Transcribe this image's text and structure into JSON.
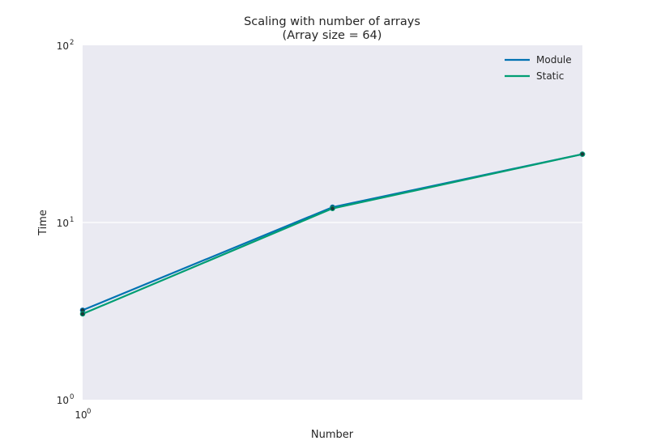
{
  "chart_data": {
    "type": "line",
    "title": "Scaling with number of arrays",
    "subtitle": "(Array size = 64)",
    "xlabel": "Number",
    "ylabel": "Time",
    "xscale": "log",
    "yscale": "log",
    "xlim": [
      1,
      4
    ],
    "ylim": [
      1,
      100
    ],
    "x_ticks": [
      {
        "base": "10",
        "exp": "0"
      }
    ],
    "y_ticks": [
      {
        "value": 1,
        "base": "10",
        "exp": "0"
      },
      {
        "value": 10,
        "base": "10",
        "exp": "1"
      },
      {
        "value": 100,
        "base": "10",
        "exp": "2"
      }
    ],
    "grid": true,
    "legend_position": "top-right",
    "background": "#eaeaf2",
    "series": [
      {
        "name": "Module",
        "color": "#0072b2",
        "x": [
          1,
          2,
          4
        ],
        "y": [
          3.2,
          12.2,
          24.3
        ]
      },
      {
        "name": "Static",
        "color": "#009e73",
        "x": [
          1,
          2,
          4
        ],
        "y": [
          3.05,
          12.0,
          24.3
        ]
      }
    ]
  }
}
